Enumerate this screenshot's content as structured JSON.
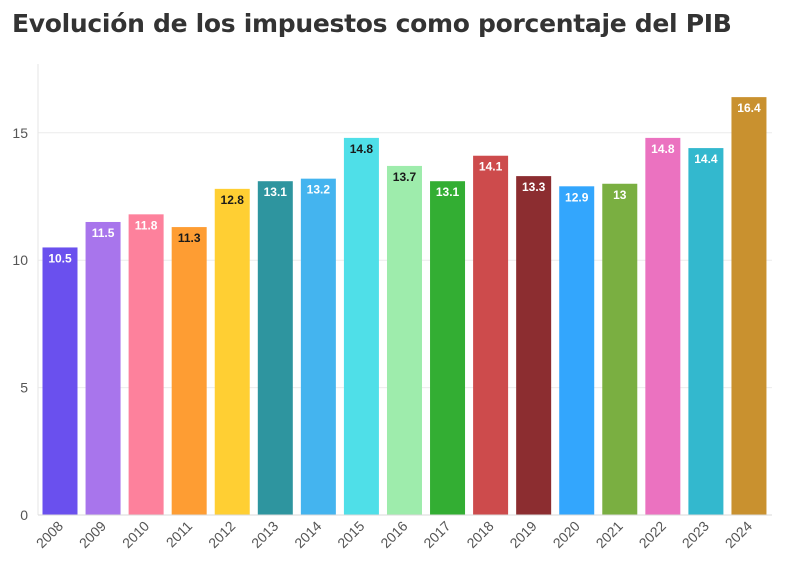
{
  "chart_data": {
    "type": "bar",
    "title": "Evolución de los impuestos como porcentaje del PIB",
    "xlabel": "",
    "ylabel": "",
    "ylim": [
      0,
      17.7
    ],
    "yticks": [
      0,
      5,
      10,
      15
    ],
    "grid": true,
    "legend": "none",
    "categories": [
      "2008",
      "2009",
      "2010",
      "2011",
      "2012",
      "2013",
      "2014",
      "2015",
      "2016",
      "2017",
      "2018",
      "2019",
      "2020",
      "2021",
      "2022",
      "2023",
      "2024"
    ],
    "values": [
      10.5,
      11.5,
      11.8,
      11.3,
      12.8,
      13.1,
      13.2,
      14.8,
      13.7,
      13.1,
      14.1,
      13.3,
      12.9,
      13,
      14.8,
      14.4,
      16.4
    ],
    "labels": [
      "10.5",
      "11.5",
      "11.8",
      "11.3",
      "12.8",
      "13.1",
      "13.2",
      "14.8",
      "13.7",
      "13.1",
      "14.1",
      "13.3",
      "12.9",
      "13",
      "14.8",
      "14.4",
      "16.4"
    ],
    "colors": [
      "#6a50ee",
      "#a875ec",
      "#fd819c",
      "#fe9d33",
      "#ffcf33",
      "#2e959f",
      "#44b4ef",
      "#4fdfe8",
      "#9eecac",
      "#33ae33",
      "#cd4b4c",
      "#8c2d30",
      "#33a6fd",
      "#7aaf41",
      "#eb72c0",
      "#33b8ce",
      "#c9912f"
    ],
    "label_colors": [
      "#ffffff",
      "#ffffff",
      "#ffffff",
      "#1a1a1a",
      "#1a1a1a",
      "#ffffff",
      "#ffffff",
      "#1a1a1a",
      "#1a1a1a",
      "#ffffff",
      "#ffffff",
      "#ffffff",
      "#ffffff",
      "#ffffff",
      "#ffffff",
      "#ffffff",
      "#ffffff"
    ]
  }
}
